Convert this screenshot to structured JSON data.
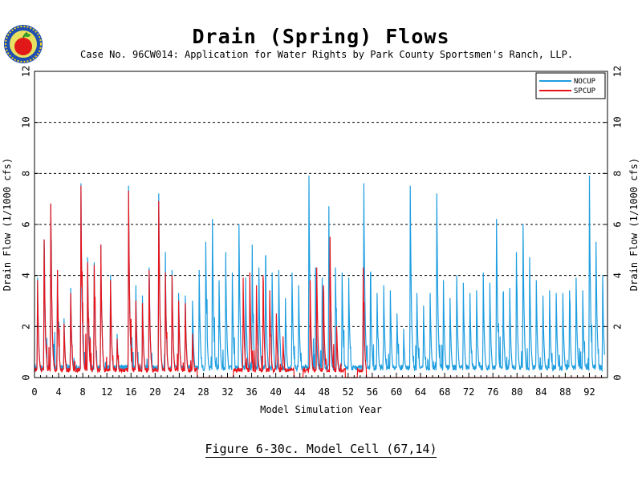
{
  "header": {
    "title": "Drain (Spring) Flows",
    "subtitle": "Case No. 96CW014: Application for Water Rights by Park County Sportsmen's Ranch, LLP."
  },
  "caption": "Figure 6-30c.  Model Cell (67,14)",
  "logo_icon": "apple-seal-icon",
  "colors": {
    "nocup": "#1e9ee0",
    "spcup": "#e8141c",
    "grid": "#000000"
  },
  "chart_data": {
    "type": "line",
    "title": "Drain (Spring) Flows",
    "xlabel": "Model Simulation Year",
    "ylabel": "Drain Flow (1/1000 cfs)",
    "ylabel_right": "Drain Flow (1/1000 cfs)",
    "xlim": [
      0,
      95
    ],
    "ylim": [
      0,
      12
    ],
    "xticks": [
      0,
      4,
      8,
      12,
      16,
      20,
      24,
      28,
      32,
      36,
      40,
      44,
      48,
      52,
      56,
      60,
      64,
      68,
      72,
      76,
      80,
      84,
      88,
      92
    ],
    "xtick_labels": [
      "0",
      "4",
      "8",
      "12",
      "16",
      "20",
      "24",
      "28",
      "32",
      "36",
      "40",
      "44",
      "48",
      "52",
      "56",
      "60",
      "64",
      "68",
      "72",
      "76",
      "80",
      "84",
      "88",
      "92"
    ],
    "yticks": [
      0,
      2,
      4,
      6,
      8,
      10,
      12
    ],
    "ytick_labels": [
      "0",
      "2",
      "4",
      "6",
      "8",
      "10",
      "12"
    ],
    "grid": "dashed horizontal at 2, 4, 6, 8, 10",
    "legend_position": "top-right",
    "series": [
      {
        "name": "NOCUP",
        "annual_peak_x": [
          0.5,
          1.6,
          2.7,
          3.8,
          4.9,
          6.0,
          7.7,
          8.8,
          9.9,
          11.0,
          12.6,
          13.7,
          15.6,
          16.8,
          17.9,
          19.0,
          20.6,
          21.7,
          22.8,
          23.9,
          25.0,
          26.2,
          27.3,
          28.4,
          29.5,
          30.6,
          31.7,
          32.8,
          33.9,
          35.0,
          36.1,
          37.2,
          38.3,
          39.4,
          40.5,
          41.6,
          42.7,
          43.8,
          45.5,
          46.6,
          47.7,
          48.8,
          49.9,
          51.0,
          52.1,
          54.6,
          55.7,
          56.8,
          57.9,
          59.0,
          60.1,
          61.2,
          62.3,
          63.4,
          64.5,
          65.6,
          66.7,
          67.8,
          68.9,
          70.0,
          71.1,
          72.2,
          73.3,
          74.4,
          75.5,
          76.6,
          77.7,
          78.8,
          79.9,
          81.0,
          82.1,
          83.2,
          84.3,
          85.4,
          86.5,
          87.6,
          88.7,
          89.8,
          90.9,
          92.0,
          93.1,
          94.2
        ],
        "annual_peak_y": [
          3.9,
          5.4,
          6.8,
          4.2,
          2.3,
          3.5,
          7.6,
          4.7,
          4.5,
          5.2,
          4.0,
          1.7,
          7.5,
          3.6,
          3.2,
          4.3,
          7.2,
          4.4,
          4.2,
          3.3,
          3.2,
          3.0,
          4.2,
          5.3,
          6.2,
          3.8,
          4.9,
          4.1,
          6.0,
          3.9,
          4.5,
          4.3,
          4.7,
          4.1,
          4.2,
          3.1,
          4.1,
          3.6,
          7.9,
          4.3,
          3.9,
          6.7,
          4.3,
          4.1,
          3.9,
          7.6,
          4.1,
          3.3,
          3.6,
          3.4,
          2.5,
          1.9,
          7.5,
          3.3,
          2.8,
          3.3,
          7.2,
          3.8,
          3.1,
          4.0,
          3.7,
          3.3,
          3.4,
          4.1,
          3.7,
          6.2,
          3.3,
          3.5,
          4.9,
          6.0,
          4.7,
          3.8,
          3.2,
          3.4,
          3.3,
          3.3,
          3.4,
          3.9,
          3.4,
          7.9,
          5.3,
          4.0
        ]
      },
      {
        "name": "SPCUP",
        "annual_peak_x": [
          0.5,
          1.6,
          2.7,
          3.8,
          4.9,
          6.0,
          7.7,
          8.8,
          9.9,
          11.0,
          12.6,
          13.7,
          15.6,
          16.8,
          17.9,
          19.0,
          20.6,
          21.7,
          22.8,
          23.9,
          25.0,
          26.2,
          34.6,
          35.7,
          36.8,
          37.9,
          39.0,
          40.1,
          41.2,
          45.7,
          46.8,
          47.9,
          49.0,
          50.1,
          54.5
        ],
        "annual_peak_y": [
          3.8,
          5.4,
          6.8,
          4.2,
          2.1,
          3.3,
          7.5,
          4.5,
          4.4,
          5.2,
          3.8,
          1.5,
          7.3,
          3.0,
          2.9,
          4.2,
          6.9,
          4.1,
          4.0,
          3.0,
          2.9,
          1.7,
          3.9,
          4.1,
          3.6,
          4.0,
          3.4,
          2.5,
          1.6,
          3.8,
          4.3,
          3.6,
          5.5,
          2.0,
          4.3
        ],
        "active_years": [
          [
            0,
            27
          ],
          [
            33,
            43
          ],
          [
            44.5,
            51.5
          ],
          [
            53.5,
            55
          ]
        ]
      }
    ]
  }
}
